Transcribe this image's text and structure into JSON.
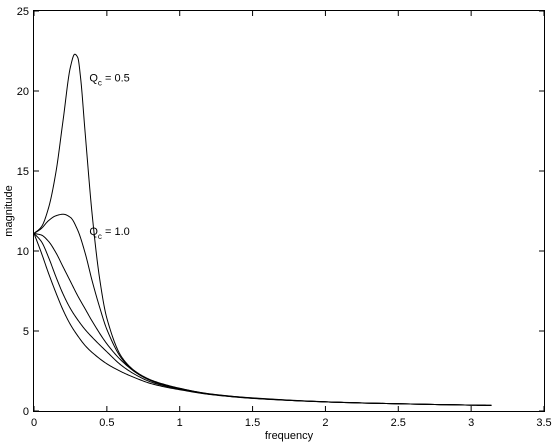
{
  "chart_data": {
    "type": "line",
    "title": "",
    "xlabel": "frequency",
    "ylabel": "magnitude",
    "xlim": [
      0,
      3.5
    ],
    "ylim": [
      0,
      25
    ],
    "xticks": [
      "0",
      "0.5",
      "1",
      "1.5",
      "2",
      "2.5",
      "3",
      "3.5"
    ],
    "yticks": [
      "0",
      "5",
      "10",
      "15",
      "20",
      "25"
    ],
    "grid": false,
    "legend": "none",
    "annotations": [
      {
        "main": "Q",
        "sub": "c",
        "rest": " = 0.5",
        "at": [
          0.38,
          20.6
        ]
      },
      {
        "main": "Q",
        "sub": "c",
        "rest": " = 1.0",
        "at": [
          0.38,
          11.0
        ]
      }
    ],
    "series": [
      {
        "x": [
          0,
          0.05,
          0.1,
          0.15,
          0.2,
          0.25,
          0.28,
          0.3,
          0.32,
          0.35,
          0.4,
          0.45,
          0.5,
          0.6,
          0.7,
          0.8,
          0.9,
          1.0,
          1.2,
          1.5,
          2.0,
          2.5,
          3.0,
          3.14
        ],
        "values": [
          11.1,
          11.5,
          12.7,
          14.9,
          18.2,
          21.5,
          22.3,
          22.1,
          20.8,
          17.5,
          12.2,
          8.3,
          5.8,
          3.4,
          2.45,
          1.95,
          1.65,
          1.42,
          1.08,
          0.82,
          0.58,
          0.45,
          0.37,
          0.35
        ]
      },
      {
        "x": [
          0,
          0.05,
          0.1,
          0.15,
          0.2,
          0.25,
          0.3,
          0.35,
          0.4,
          0.45,
          0.5,
          0.6,
          0.7,
          0.8,
          0.9,
          1.0,
          1.2,
          1.5,
          2.0,
          2.5,
          3.0,
          3.14
        ],
        "values": [
          11.1,
          11.4,
          11.9,
          12.2,
          12.3,
          12.1,
          11.3,
          9.9,
          8.1,
          6.5,
          5.1,
          3.3,
          2.4,
          1.92,
          1.62,
          1.41,
          1.07,
          0.81,
          0.57,
          0.45,
          0.37,
          0.35
        ]
      },
      {
        "x": [
          0,
          0.05,
          0.1,
          0.15,
          0.2,
          0.25,
          0.3,
          0.35,
          0.4,
          0.5,
          0.6,
          0.7,
          0.8,
          0.9,
          1.0,
          1.2,
          1.5,
          2.0,
          2.5,
          3.0,
          3.14
        ],
        "values": [
          11.1,
          11.0,
          10.6,
          9.9,
          9.0,
          8.1,
          7.2,
          6.4,
          5.6,
          4.2,
          3.15,
          2.4,
          1.9,
          1.6,
          1.39,
          1.06,
          0.8,
          0.57,
          0.45,
          0.37,
          0.35
        ]
      },
      {
        "x": [
          0,
          0.05,
          0.1,
          0.15,
          0.2,
          0.25,
          0.3,
          0.35,
          0.4,
          0.5,
          0.6,
          0.7,
          0.8,
          0.9,
          1.0,
          1.2,
          1.5,
          2.0,
          2.5,
          3.0,
          3.14
        ],
        "values": [
          11.1,
          10.6,
          9.6,
          8.4,
          7.3,
          6.4,
          5.7,
          5.1,
          4.6,
          3.7,
          2.85,
          2.25,
          1.82,
          1.56,
          1.37,
          1.05,
          0.8,
          0.57,
          0.45,
          0.37,
          0.35
        ]
      },
      {
        "x": [
          0,
          0.05,
          0.1,
          0.15,
          0.2,
          0.25,
          0.3,
          0.35,
          0.4,
          0.5,
          0.6,
          0.7,
          0.8,
          0.9,
          1.0,
          1.2,
          1.5,
          2.0,
          2.5,
          3.0,
          3.14
        ],
        "values": [
          11.1,
          9.9,
          8.6,
          7.4,
          6.3,
          5.4,
          4.7,
          4.1,
          3.65,
          2.95,
          2.45,
          2.05,
          1.72,
          1.5,
          1.33,
          1.04,
          0.79,
          0.57,
          0.45,
          0.37,
          0.35
        ]
      }
    ]
  }
}
